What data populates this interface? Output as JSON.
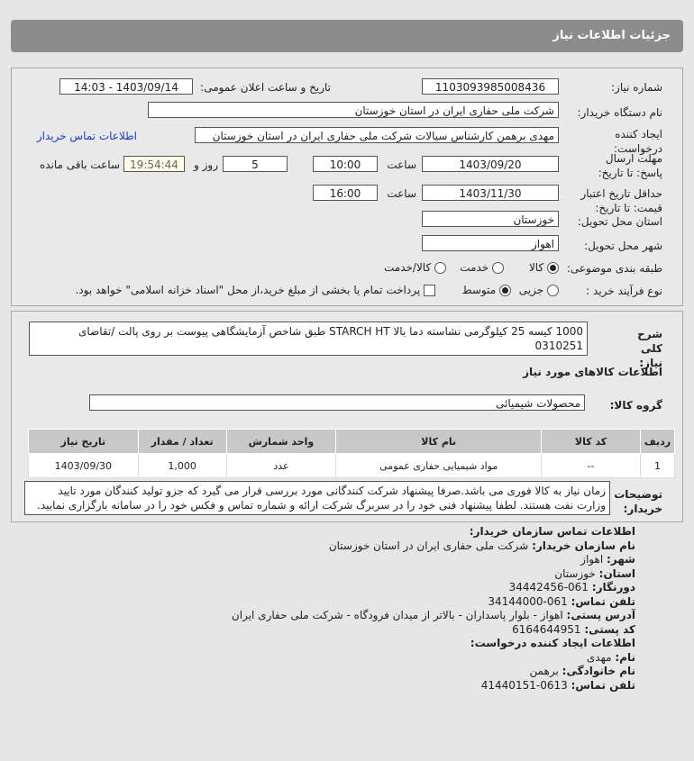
{
  "header": {
    "title": "جزئیات اطلاعات نیاز"
  },
  "form": {
    "need_number_label": "شماره نیاز:",
    "need_number": "1103093985008436",
    "announce_label": "تاریخ و ساعت اعلان عمومی:",
    "announce_value": "1403/09/14 - 14:03",
    "buyer_label": "نام دستگاه خریدار:",
    "buyer": "شرکت ملی حفاری ایران در استان خوزستان",
    "creator_label": "ایجاد کننده درخواست:",
    "creator": "مهدی برهمن کارشناس سیالات شرکت ملی حفاری ایران در استان خوزستان",
    "contact_link": "اطلاعات تماس خریدار",
    "reply_label": "مهلت ارسال پاسخ: تا تاریخ:",
    "reply_date": "1403/09/20",
    "time_label": "ساعت",
    "reply_time": "10:00",
    "days": "5",
    "days_label": "روز و",
    "remaining": "19:54:44",
    "remaining_label": "ساعت باقی مانده",
    "validity_label": "حداقل تاریخ اعتبار قیمت: تا تاریخ:",
    "validity_date": "1403/11/30",
    "validity_time": "16:00",
    "province_label": "استان محل تحویل:",
    "province": "خوزستان",
    "city_label": "شهر محل تحویل:",
    "city": "اهواز",
    "category_label": "طبقه بندی موضوعی:",
    "category_options": [
      "کالا",
      "خدمت",
      "کالا/خدمت"
    ],
    "category_selected": "کالا",
    "process_label": "نوع فرآیند خرید :",
    "process_options": [
      "جزیی",
      "متوسط"
    ],
    "process_selected": "متوسط",
    "payment_note": "پرداخت تمام یا بخشی از مبلغ خرید،از محل \"اسناد خزانه اسلامی\" خواهد بود."
  },
  "details": {
    "desc_label": "شرح کلی نیاز:",
    "desc": "1000 کیسه 25 کیلوگرمی نشاسته دما بالا STARCH HT طبق شاخص آزمایشگاهی پیوست بر روی پالت /تقاضای 0310251",
    "goods_title": "اطلاعات کالاهای مورد نیاز",
    "group_label": "گروه کالا:",
    "group": "محصولات شیمیائی",
    "table": {
      "headers": [
        "ردیف",
        "کد کالا",
        "نام کالا",
        "واحد شمارش",
        "تعداد / مقدار",
        "تاریخ نیاز"
      ],
      "rows": [
        [
          "1",
          "--",
          "مواد شیمیایی حفاری عمومی",
          "عدد",
          "1,000",
          "1403/09/30"
        ]
      ]
    },
    "notes_label": "توضیحات خریدار:",
    "notes": "زمان نیاز به کالا فوری می باشد.صرفا پیشنهاد شرکت کنندگانی مورد بررسی قرار می گیرد که جزو تولید کنندگان مورد تایید وزارت نفت هستند. لطفا پیشنهاد فنی خود را در سربرگ شرکت ارائه و شماره تماس و فکس خود را در سامانه بارگزاری نمایید."
  },
  "contact": {
    "title": "اطلاعات تماس سازمان خریدار:",
    "org_label": "نام سازمان خریدار:",
    "org": "شرکت ملی حفاری ایران در استان خوزستان",
    "city_label": "شهر:",
    "city": "اهواز",
    "province_label": "استان:",
    "province": "خوزستان",
    "fax_label": "دورنگار:",
    "fax": "061-34442456",
    "phone_label": "تلفن تماس:",
    "phone": "061-34144000",
    "address_label": "آدرس پستی:",
    "address": "اهواز - بلوار پاسداران - بالاتر از میدان فرودگاه - شرکت ملی حفاری ایران",
    "postal_label": "کد پستی:",
    "postal": "6164644951",
    "creator_title": "اطلاعات ایجاد کننده درخواست:",
    "name_label": "نام:",
    "name": "مهدی",
    "family_label": "نام خانوادگی:",
    "family": "برهمن",
    "cphone_label": "تلفن تماس:",
    "cphone": "0613-41440151"
  },
  "colors": {
    "header": "#8c8c8c",
    "link": "#1a3ccc",
    "remaining_bg": "#fffde8"
  }
}
